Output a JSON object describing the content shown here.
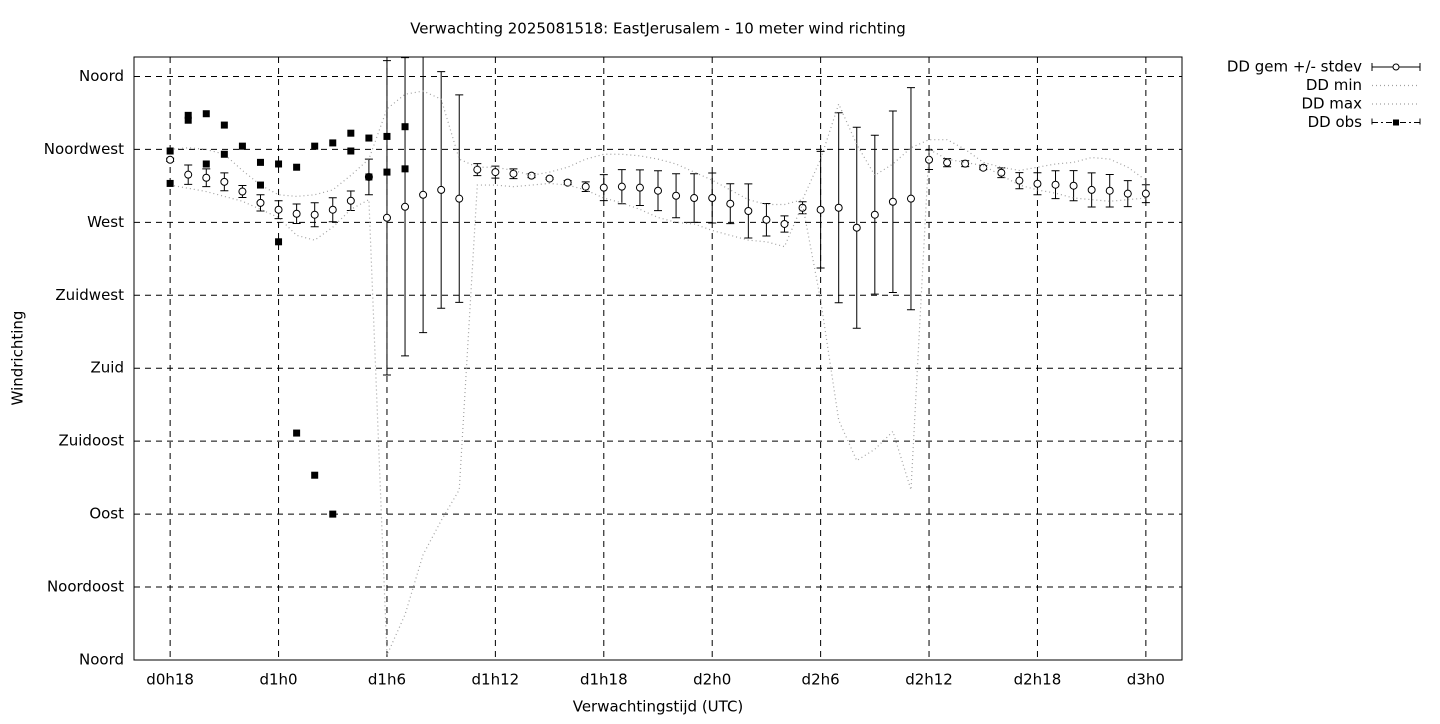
{
  "chart_data": {
    "type": "line",
    "title": "Verwachting 2025081518: EastJerusalem - 10 meter wind richting",
    "x_label": "Verwachtingstijd (UTC)",
    "y_label": "Windrichting",
    "xlim": [
      16,
      74
    ],
    "xticks": [
      {
        "value": 18,
        "label": "d0h18"
      },
      {
        "value": 24,
        "label": "d1h0"
      },
      {
        "value": 30,
        "label": "d1h6"
      },
      {
        "value": 36,
        "label": "d1h12"
      },
      {
        "value": 42,
        "label": "d1h18"
      },
      {
        "value": 48,
        "label": "d2h0"
      },
      {
        "value": 54,
        "label": "d2h6"
      },
      {
        "value": 60,
        "label": "d2h12"
      },
      {
        "value": 66,
        "label": "d2h18"
      },
      {
        "value": 72,
        "label": "d3h0"
      }
    ],
    "ylim": [
      0,
      372
    ],
    "yticks": [
      {
        "value": 0,
        "label": "Noord"
      },
      {
        "value": 45,
        "label": "Noordoost"
      },
      {
        "value": 90,
        "label": "Oost"
      },
      {
        "value": 135,
        "label": "Zuidoost"
      },
      {
        "value": 180,
        "label": "Zuid"
      },
      {
        "value": 225,
        "label": "Zuidwest"
      },
      {
        "value": 270,
        "label": "West"
      },
      {
        "value": 315,
        "label": "Noordwest"
      },
      {
        "value": 360,
        "label": "Noord"
      }
    ],
    "grid": true,
    "legend": "outside-right",
    "series": [
      {
        "name": "DD gem +/- stdev",
        "color": "#000000",
        "style": "errorbars",
        "x": [
          18,
          19,
          20,
          21,
          22,
          23,
          24,
          25,
          26,
          27,
          28,
          29,
          30,
          31,
          32,
          33,
          34,
          35,
          36,
          37,
          38,
          39,
          40,
          41,
          42,
          43,
          44,
          45,
          46,
          47,
          48,
          49,
          50,
          51,
          52,
          53,
          54,
          55,
          56,
          57,
          58,
          59,
          60,
          61,
          62,
          63,
          64,
          65,
          66,
          67,
          68,
          69,
          70,
          71,
          72
        ],
        "values": [
          308.6,
          299.4,
          297.5,
          295,
          289,
          282,
          277.8,
          275.3,
          274.7,
          277.8,
          283.3,
          298,
          272.8,
          279.6,
          287,
          290,
          284.6,
          302.5,
          301,
          300,
          298.8,
          297,
          294.5,
          292,
          291.4,
          292,
          291.4,
          289.5,
          286.4,
          285,
          285,
          281.5,
          277,
          271.6,
          269,
          279,
          277.8,
          279,
          266.7,
          274.7,
          282.7,
          284.6,
          308.6,
          306.8,
          306.2,
          303.7,
          300.6,
          295.7,
          293.8,
          293.2,
          292.6,
          290,
          289.5,
          287.7,
          287.7
        ],
        "errors": [
          1,
          6,
          5.5,
          5.5,
          3.7,
          5,
          5.5,
          6,
          7.4,
          7.4,
          6,
          11,
          97,
          92,
          85,
          73,
          64,
          3.7,
          3.7,
          3,
          1.2,
          0.6,
          1.2,
          3,
          8,
          10.5,
          11,
          12.3,
          13.6,
          15,
          15.4,
          12.3,
          16.7,
          10,
          5,
          3.7,
          36,
          58.6,
          62,
          49,
          56,
          68.5,
          6,
          2.5,
          1.8,
          1.2,
          3,
          5,
          6.8,
          8.6,
          9.3,
          10.5,
          10,
          8,
          5.5
        ]
      },
      {
        "name": "DD min",
        "color": "#a0a0a0",
        "style": "dotted",
        "x": [
          18,
          19,
          20,
          21,
          22,
          23,
          24,
          25,
          26,
          27,
          28,
          29,
          30,
          31,
          32,
          33,
          34,
          35,
          36,
          37,
          38,
          39,
          40,
          41,
          42,
          43,
          44,
          45,
          46,
          47,
          48,
          49,
          50,
          51,
          52,
          53,
          54,
          55,
          56,
          57,
          58,
          59,
          60,
          61,
          62,
          63,
          64,
          65,
          66,
          67,
          68,
          69,
          70,
          71,
          72
        ],
        "values": [
          293,
          291,
          289,
          286,
          283,
          278,
          273,
          262,
          259,
          267,
          278,
          284,
          3,
          28,
          65,
          86,
          105,
          293,
          293,
          292,
          293,
          294,
          293,
          290,
          285,
          282,
          278,
          273,
          270,
          269,
          265,
          262,
          259,
          258,
          255,
          281,
          222,
          148,
          123,
          130,
          141,
          105,
          315,
          309,
          307,
          305,
          299,
          293,
          290,
          288,
          285,
          284,
          283,
          284,
          285
        ]
      },
      {
        "name": "DD max",
        "color": "#a0a0a0",
        "style": "dotted",
        "x": [
          18,
          19,
          20,
          21,
          22,
          23,
          24,
          25,
          26,
          27,
          28,
          29,
          30,
          31,
          32,
          33,
          34,
          35,
          36,
          37,
          38,
          39,
          40,
          41,
          42,
          43,
          44,
          45,
          46,
          47,
          48,
          49,
          50,
          51,
          52,
          53,
          54,
          55,
          56,
          57,
          58,
          59,
          60,
          61,
          62,
          63,
          64,
          65,
          66,
          67,
          68,
          69,
          70,
          71,
          72
        ],
        "values": [
          315,
          316,
          315,
          312,
          302,
          293,
          287,
          286,
          287,
          290,
          299,
          309,
          340,
          349,
          351,
          346,
          309,
          304,
          304,
          302,
          299,
          301,
          304,
          309,
          312,
          312,
          311,
          309,
          306,
          301,
          296,
          290,
          284,
          281,
          281,
          284,
          309,
          343,
          318,
          299,
          306,
          316,
          321,
          321,
          315,
          307,
          304,
          302,
          304,
          306,
          307,
          310,
          309,
          304,
          296
        ]
      },
      {
        "name": "DD obs",
        "color": "#000000",
        "style": "squares",
        "x": [
          18,
          18,
          19,
          19,
          20,
          20,
          21,
          21,
          22,
          23,
          23,
          24,
          24,
          25,
          25,
          26,
          26,
          27,
          27,
          28,
          28,
          29,
          29,
          30,
          30,
          31,
          31
        ],
        "values": [
          314,
          294,
          336,
          333,
          337,
          306,
          330,
          312,
          317,
          307,
          293,
          306,
          258,
          304,
          140,
          317,
          114,
          319,
          90,
          325,
          314,
          322,
          298,
          323,
          301,
          329,
          303
        ]
      }
    ]
  }
}
